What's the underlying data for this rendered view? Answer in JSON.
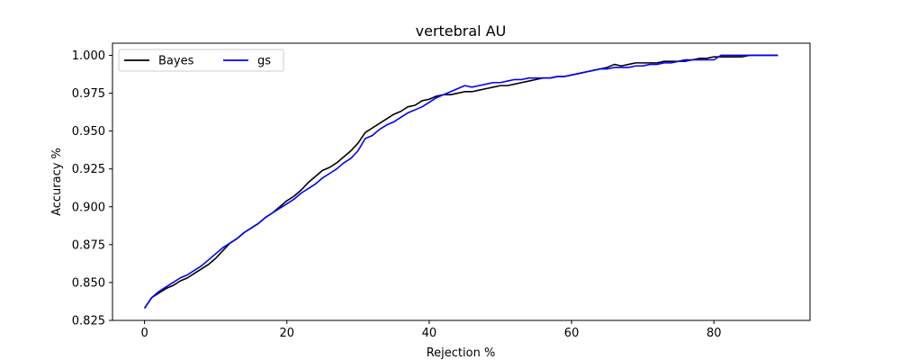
{
  "chart_data": {
    "type": "line",
    "title": "vertebral AU",
    "xlabel": "Rejection %",
    "ylabel": "Accuracy %",
    "xlim": [
      -4.5,
      93.5
    ],
    "ylim": [
      0.825,
      1.008
    ],
    "xticks": [
      0,
      20,
      40,
      60,
      80
    ],
    "yticks": [
      0.825,
      0.85,
      0.875,
      0.9,
      0.925,
      0.95,
      0.975,
      1.0
    ],
    "ytick_labels": [
      "0.825",
      "0.850",
      "0.875",
      "0.900",
      "0.925",
      "0.950",
      "0.975",
      "1.000"
    ],
    "grid": false,
    "legend": {
      "placement": "top-left",
      "ncol": 2
    },
    "series": [
      {
        "name": "Bayes",
        "color": "#000000",
        "points": [
          [
            0,
            0.833
          ],
          [
            1,
            0.84
          ],
          [
            2,
            0.843
          ],
          [
            3,
            0.846
          ],
          [
            4,
            0.848
          ],
          [
            5,
            0.851
          ],
          [
            6,
            0.853
          ],
          [
            7,
            0.856
          ],
          [
            8,
            0.859
          ],
          [
            9,
            0.862
          ],
          [
            10,
            0.866
          ],
          [
            11,
            0.871
          ],
          [
            12,
            0.876
          ],
          [
            13,
            0.879
          ],
          [
            14,
            0.883
          ],
          [
            15,
            0.886
          ],
          [
            16,
            0.889
          ],
          [
            17,
            0.893
          ],
          [
            18,
            0.896
          ],
          [
            19,
            0.9
          ],
          [
            20,
            0.904
          ],
          [
            21,
            0.907
          ],
          [
            22,
            0.911
          ],
          [
            23,
            0.916
          ],
          [
            24,
            0.92
          ],
          [
            25,
            0.924
          ],
          [
            26,
            0.926
          ],
          [
            27,
            0.929
          ],
          [
            28,
            0.933
          ],
          [
            29,
            0.937
          ],
          [
            30,
            0.942
          ],
          [
            31,
            0.949
          ],
          [
            32,
            0.952
          ],
          [
            33,
            0.955
          ],
          [
            34,
            0.958
          ],
          [
            35,
            0.961
          ],
          [
            36,
            0.963
          ],
          [
            37,
            0.966
          ],
          [
            38,
            0.967
          ],
          [
            39,
            0.97
          ],
          [
            40,
            0.971
          ],
          [
            41,
            0.973
          ],
          [
            42,
            0.974
          ],
          [
            43,
            0.974
          ],
          [
            44,
            0.975
          ],
          [
            45,
            0.976
          ],
          [
            46,
            0.976
          ],
          [
            47,
            0.977
          ],
          [
            48,
            0.978
          ],
          [
            49,
            0.979
          ],
          [
            50,
            0.98
          ],
          [
            51,
            0.98
          ],
          [
            52,
            0.981
          ],
          [
            53,
            0.982
          ],
          [
            54,
            0.983
          ],
          [
            55,
            0.984
          ],
          [
            56,
            0.985
          ],
          [
            57,
            0.985
          ],
          [
            58,
            0.986
          ],
          [
            59,
            0.986
          ],
          [
            60,
            0.987
          ],
          [
            61,
            0.988
          ],
          [
            62,
            0.989
          ],
          [
            63,
            0.99
          ],
          [
            64,
            0.991
          ],
          [
            65,
            0.992
          ],
          [
            66,
            0.994
          ],
          [
            67,
            0.993
          ],
          [
            68,
            0.994
          ],
          [
            69,
            0.995
          ],
          [
            70,
            0.995
          ],
          [
            71,
            0.995
          ],
          [
            72,
            0.995
          ],
          [
            73,
            0.996
          ],
          [
            74,
            0.996
          ],
          [
            75,
            0.996
          ],
          [
            76,
            0.997
          ],
          [
            77,
            0.997
          ],
          [
            78,
            0.998
          ],
          [
            79,
            0.998
          ],
          [
            80,
            0.999
          ],
          [
            81,
            0.999
          ],
          [
            82,
            0.999
          ],
          [
            83,
            0.999
          ],
          [
            84,
            0.999
          ],
          [
            85,
            1.0
          ],
          [
            86,
            1.0
          ],
          [
            87,
            1.0
          ],
          [
            88,
            1.0
          ],
          [
            89,
            1.0
          ]
        ]
      },
      {
        "name": "gs",
        "color": "#0000ff",
        "points": [
          [
            0,
            0.833
          ],
          [
            1,
            0.84
          ],
          [
            2,
            0.844
          ],
          [
            3,
            0.847
          ],
          [
            4,
            0.85
          ],
          [
            5,
            0.853
          ],
          [
            6,
            0.855
          ],
          [
            7,
            0.858
          ],
          [
            8,
            0.861
          ],
          [
            9,
            0.865
          ],
          [
            10,
            0.869
          ],
          [
            11,
            0.873
          ],
          [
            12,
            0.876
          ],
          [
            13,
            0.879
          ],
          [
            14,
            0.883
          ],
          [
            15,
            0.886
          ],
          [
            16,
            0.889
          ],
          [
            17,
            0.893
          ],
          [
            18,
            0.896
          ],
          [
            19,
            0.899
          ],
          [
            20,
            0.902
          ],
          [
            21,
            0.905
          ],
          [
            22,
            0.909
          ],
          [
            23,
            0.912
          ],
          [
            24,
            0.915
          ],
          [
            25,
            0.919
          ],
          [
            26,
            0.922
          ],
          [
            27,
            0.925
          ],
          [
            28,
            0.929
          ],
          [
            29,
            0.932
          ],
          [
            30,
            0.937
          ],
          [
            31,
            0.945
          ],
          [
            32,
            0.947
          ],
          [
            33,
            0.951
          ],
          [
            34,
            0.954
          ],
          [
            35,
            0.956
          ],
          [
            36,
            0.959
          ],
          [
            37,
            0.962
          ],
          [
            38,
            0.964
          ],
          [
            39,
            0.966
          ],
          [
            40,
            0.969
          ],
          [
            41,
            0.972
          ],
          [
            42,
            0.974
          ],
          [
            43,
            0.976
          ],
          [
            44,
            0.978
          ],
          [
            45,
            0.98
          ],
          [
            46,
            0.979
          ],
          [
            47,
            0.98
          ],
          [
            48,
            0.981
          ],
          [
            49,
            0.982
          ],
          [
            50,
            0.982
          ],
          [
            51,
            0.983
          ],
          [
            52,
            0.984
          ],
          [
            53,
            0.984
          ],
          [
            54,
            0.985
          ],
          [
            55,
            0.985
          ],
          [
            56,
            0.985
          ],
          [
            57,
            0.985
          ],
          [
            58,
            0.986
          ],
          [
            59,
            0.986
          ],
          [
            60,
            0.987
          ],
          [
            61,
            0.988
          ],
          [
            62,
            0.989
          ],
          [
            63,
            0.99
          ],
          [
            64,
            0.991
          ],
          [
            65,
            0.991
          ],
          [
            66,
            0.992
          ],
          [
            67,
            0.992
          ],
          [
            68,
            0.992
          ],
          [
            69,
            0.993
          ],
          [
            70,
            0.993
          ],
          [
            71,
            0.994
          ],
          [
            72,
            0.994
          ],
          [
            73,
            0.995
          ],
          [
            74,
            0.995
          ],
          [
            75,
            0.996
          ],
          [
            76,
            0.996
          ],
          [
            77,
            0.997
          ],
          [
            78,
            0.997
          ],
          [
            79,
            0.997
          ],
          [
            80,
            0.997
          ],
          [
            81,
            1.0
          ],
          [
            82,
            1.0
          ],
          [
            83,
            1.0
          ],
          [
            84,
            1.0
          ],
          [
            85,
            1.0
          ],
          [
            86,
            1.0
          ],
          [
            87,
            1.0
          ],
          [
            88,
            1.0
          ],
          [
            89,
            1.0
          ]
        ]
      }
    ]
  }
}
